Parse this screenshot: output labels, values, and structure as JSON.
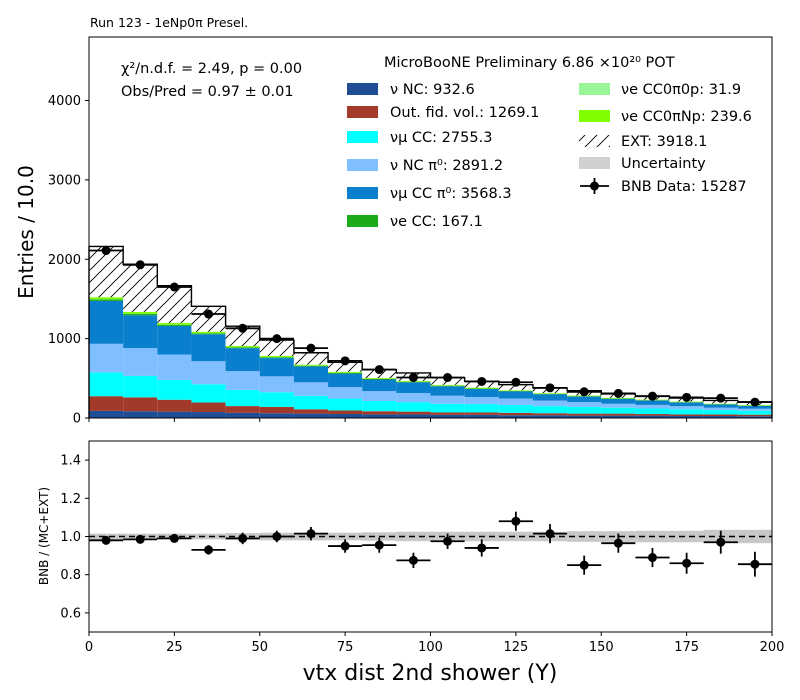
{
  "chart_data": [
    {
      "type": "bar",
      "stacked": true,
      "title": "Run 123 - 1eNp0π Presel.",
      "ylabel": "Entries / 10.0",
      "xlim": [
        0,
        200
      ],
      "ylim": [
        0,
        4800
      ],
      "yticks": [
        "0",
        "1000",
        "2000",
        "3000",
        "4000"
      ],
      "bin_edges": [
        0,
        10,
        20,
        30,
        40,
        50,
        60,
        70,
        80,
        90,
        100,
        110,
        120,
        130,
        140,
        150,
        160,
        170,
        180,
        190,
        200
      ],
      "annotations": {
        "chi2": "χ²/n.d.f. = 2.49, p = 0.00",
        "obs_pred": "Obs/Pred = 0.97 ± 0.01",
        "header": "MicroBooNE Preliminary 6.86 ×10²⁰ POT"
      },
      "series": [
        {
          "name": "ν NC: 932.6",
          "color": "#1f4e96",
          "values": [
            90,
            85,
            80,
            75,
            65,
            60,
            55,
            50,
            45,
            45,
            40,
            40,
            35,
            35,
            30,
            30,
            30,
            25,
            25,
            22
          ]
        },
        {
          "name": "Out. fid. vol.: 1269.1",
          "color": "#a23a2a",
          "values": [
            185,
            175,
            150,
            120,
            85,
            80,
            55,
            45,
            40,
            35,
            30,
            30,
            30,
            25,
            25,
            25,
            20,
            20,
            20,
            20
          ]
        },
        {
          "name": "νμ CC: 2755.3",
          "color": "#00ffff",
          "values": [
            300,
            270,
            250,
            230,
            205,
            185,
            170,
            150,
            130,
            120,
            110,
            105,
            100,
            90,
            85,
            75,
            70,
            65,
            55,
            50
          ]
        },
        {
          "name": "ν NC π⁰: 2891.2",
          "color": "#7fbfff",
          "values": [
            360,
            350,
            320,
            290,
            235,
            200,
            170,
            145,
            125,
            115,
            100,
            90,
            80,
            70,
            60,
            50,
            45,
            40,
            30,
            25
          ]
        },
        {
          "name": "νμ CC π⁰: 3568.3",
          "color": "#0a7fce",
          "values": [
            540,
            415,
            360,
            340,
            290,
            230,
            200,
            170,
            145,
            135,
            120,
            100,
            90,
            80,
            70,
            60,
            55,
            45,
            40,
            35
          ]
        },
        {
          "name": "νe CC: 167.1",
          "color": "#1aaa1a",
          "values": [
            20,
            18,
            15,
            12,
            10,
            10,
            8,
            8,
            7,
            6,
            6,
            6,
            5,
            5,
            5,
            5,
            4,
            4,
            4,
            4
          ]
        },
        {
          "name": "νe CC0π0p: 31.9",
          "color": "#98f598",
          "values": [
            2,
            2,
            2,
            2,
            2,
            2,
            2,
            2,
            2,
            2,
            2,
            2,
            2,
            1,
            1,
            1,
            1,
            1,
            1,
            1
          ]
        },
        {
          "name": "νe CC0πNp: 239.6",
          "color": "#7fff00",
          "values": [
            25,
            22,
            20,
            18,
            15,
            15,
            12,
            12,
            10,
            10,
            10,
            10,
            8,
            8,
            8,
            8,
            7,
            7,
            6,
            6
          ]
        },
        {
          "name": "EXT: 3918.1",
          "color": "#ffffff",
          "hatch": true,
          "values": [
            640,
            600,
            470,
            320,
            250,
            200,
            150,
            120,
            105,
            100,
            90,
            80,
            70,
            65,
            60,
            50,
            45,
            45,
            40,
            40
          ]
        }
      ],
      "legend_extra": [
        {
          "name": "Uncertainty",
          "color": "#d0d0d0"
        },
        {
          "name": "BNB Data: 15287",
          "marker": "point"
        }
      ],
      "data_points": {
        "x": [
          5,
          15,
          25,
          35,
          45,
          55,
          65,
          75,
          85,
          95,
          105,
          115,
          125,
          135,
          145,
          155,
          165,
          175,
          185,
          195
        ],
        "y": [
          2110,
          1930,
          1650,
          1310,
          1130,
          1000,
          880,
          720,
          610,
          510,
          510,
          460,
          450,
          380,
          330,
          310,
          275,
          260,
          250,
          200
        ]
      }
    },
    {
      "type": "scatter",
      "ylabel": "BNB / (MC+EXT)",
      "xlabel": "vtx dist 2nd shower (Y)",
      "xlim": [
        0,
        200
      ],
      "ylim": [
        0.5,
        1.5
      ],
      "xticks": [
        "0",
        "25",
        "50",
        "75",
        "100",
        "125",
        "150",
        "175",
        "200"
      ],
      "yticks": [
        "0.6",
        "0.8",
        "1.0",
        "1.2",
        "1.4"
      ],
      "x": [
        5,
        15,
        25,
        35,
        45,
        55,
        65,
        75,
        85,
        95,
        105,
        115,
        125,
        135,
        145,
        155,
        165,
        175,
        185,
        195
      ],
      "y": [
        0.98,
        0.985,
        0.99,
        0.93,
        0.99,
        1.0,
        1.015,
        0.95,
        0.955,
        0.875,
        0.975,
        0.94,
        1.08,
        1.015,
        0.85,
        0.965,
        0.89,
        0.86,
        0.97,
        0.855
      ],
      "yerr": [
        0.02,
        0.02,
        0.02,
        0.025,
        0.03,
        0.03,
        0.035,
        0.035,
        0.04,
        0.04,
        0.04,
        0.045,
        0.05,
        0.05,
        0.05,
        0.05,
        0.05,
        0.055,
        0.06,
        0.065
      ],
      "uncertainty_halfwidth": [
        0.015,
        0.015,
        0.015,
        0.015,
        0.018,
        0.02,
        0.02,
        0.02,
        0.022,
        0.025,
        0.025,
        0.025,
        0.025,
        0.025,
        0.028,
        0.028,
        0.03,
        0.03,
        0.035,
        0.035
      ],
      "reference_line": 1.0
    }
  ]
}
